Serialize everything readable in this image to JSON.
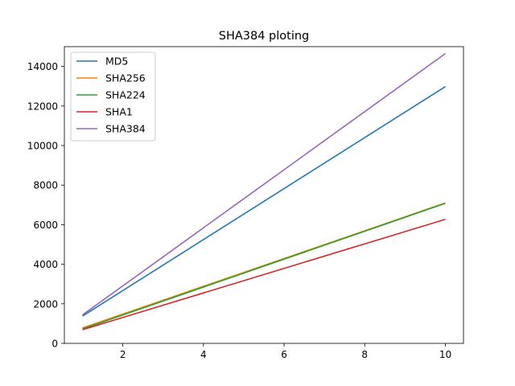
{
  "chart_data": {
    "type": "line",
    "title": "SHA384 ploting",
    "xlabel": "",
    "ylabel": "",
    "xlim": [
      0.55,
      10.45
    ],
    "ylim": [
      0,
      15000
    ],
    "xticks": [
      2,
      4,
      6,
      8,
      10
    ],
    "yticks": [
      0,
      2000,
      4000,
      6000,
      8000,
      10000,
      12000,
      14000
    ],
    "grid": false,
    "legend": "upper-left",
    "series": [
      {
        "name": "MD5",
        "color": "#1f77b4",
        "x": [
          1,
          10
        ],
        "y": [
          1380,
          12980
        ]
      },
      {
        "name": "SHA256",
        "color": "#ff7f0e",
        "x": [
          1,
          10
        ],
        "y": [
          780,
          7100
        ]
      },
      {
        "name": "SHA224",
        "color": "#2ca02c",
        "x": [
          1,
          10
        ],
        "y": [
          730,
          7080
        ]
      },
      {
        "name": "SHA1",
        "color": "#d62728",
        "x": [
          1,
          10
        ],
        "y": [
          690,
          6270
        ]
      },
      {
        "name": "SHA384",
        "color": "#9467bd",
        "x": [
          1,
          10
        ],
        "y": [
          1440,
          14650
        ]
      }
    ]
  }
}
